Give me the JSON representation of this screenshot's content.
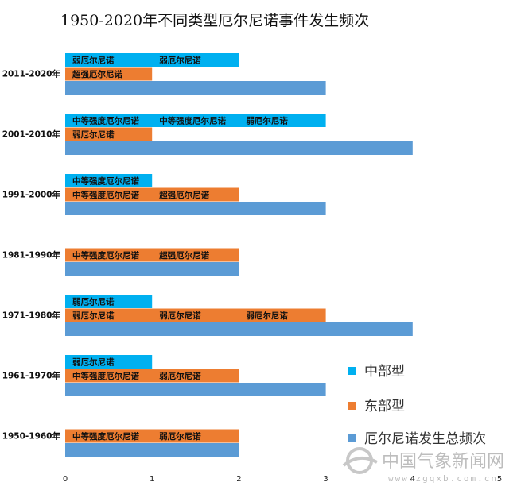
{
  "chart_data": {
    "type": "bar",
    "orientation": "horizontal",
    "title": "1950-2020年不同类型厄尔尼诺事件发生频次",
    "categories": [
      "2011-2020年",
      "2001-2010年",
      "1991-2000年",
      "1981-1990年",
      "1971-1980年",
      "1961-1970年",
      "1950-1960年"
    ],
    "xlim": [
      0,
      5
    ],
    "xticks": [
      "0",
      "1",
      "2",
      "3",
      "4",
      "5"
    ],
    "legend_position": "bottom-right",
    "grid": false,
    "series": [
      {
        "name": "中部型",
        "color": "#00b0f0",
        "values": [
          2,
          3,
          1,
          0,
          1,
          1,
          0
        ],
        "segment_labels": [
          [
            "弱厄尔尼诺",
            "弱厄尔尼诺"
          ],
          [
            "中等强度厄尔尼诺",
            "中等强度厄尔尼诺",
            "弱厄尔尼诺"
          ],
          [
            "中等强度厄尔尼诺"
          ],
          [],
          [
            "弱厄尔尼诺"
          ],
          [
            "弱厄尔尼诺"
          ],
          []
        ]
      },
      {
        "name": "东部型",
        "color": "#ed7d31",
        "values": [
          1,
          1,
          2,
          2,
          3,
          2,
          2
        ],
        "segment_labels": [
          [
            "超强厄尔尼诺"
          ],
          [
            "弱厄尔尼诺"
          ],
          [
            "中等强度厄尔尼诺",
            "超强厄尔尼诺"
          ],
          [
            "中等强度厄尔尼诺",
            "超强厄尔尼诺"
          ],
          [
            "弱厄尔尼诺",
            "弱厄尔尼诺",
            "弱厄尔尼诺"
          ],
          [
            "中等强度厄尔尼诺",
            "弱厄尔尼诺"
          ],
          [
            "中等强度厄尔尼诺",
            "弱厄尔尼诺"
          ]
        ]
      },
      {
        "name": "厄尔尼诺发生总频次",
        "color": "#5b9bd5",
        "values": [
          3,
          4,
          3,
          2,
          4,
          3,
          2
        ],
        "segment_labels": [
          [],
          [],
          [],
          [],
          [],
          [],
          []
        ]
      }
    ]
  },
  "watermark": {
    "text": "中国气象新闻网",
    "url": "www.zgqxb.com.cn"
  }
}
